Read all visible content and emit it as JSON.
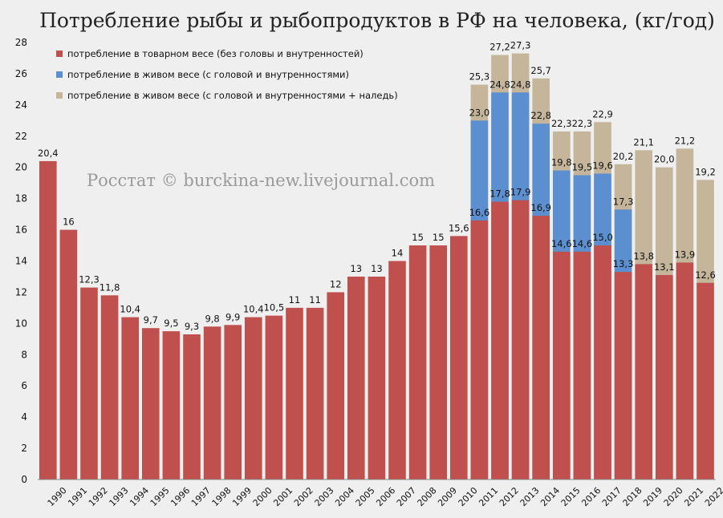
{
  "chart_data": {
    "type": "bar",
    "title": "Потребление рыбы и рыбопродуктов в РФ на человека, (кг/год)",
    "watermark": "Росстат © burckina-new.livejournal.com",
    "xlabel": "",
    "ylabel": "",
    "ylim": [
      0,
      28
    ],
    "yticks": [
      0,
      2,
      4,
      6,
      8,
      10,
      12,
      14,
      16,
      18,
      20,
      22,
      24,
      26,
      28
    ],
    "grid": false,
    "legend_position": "top-left",
    "categories": [
      "1990",
      "1991",
      "1992",
      "1993",
      "1994",
      "1995",
      "1996",
      "1997",
      "1998",
      "1999",
      "2000",
      "2001",
      "2002",
      "2003",
      "2004",
      "2005",
      "2006",
      "2007",
      "2008",
      "2009",
      "2010",
      "2011",
      "2012",
      "2013",
      "2014",
      "2015",
      "2016",
      "2017",
      "2018",
      "2019",
      "2020",
      "2021",
      "2022"
    ],
    "series": [
      {
        "name": "потребление в товарном весе (без головы и внутренностей)",
        "color": "#c0504d",
        "values": [
          20.4,
          16,
          12.3,
          11.8,
          10.4,
          9.7,
          9.5,
          9.3,
          9.8,
          9.9,
          10.4,
          10.5,
          11,
          11,
          12,
          13,
          13,
          14,
          15,
          15,
          15.6,
          16.6,
          17.8,
          17.9,
          16.9,
          14.6,
          14.6,
          15.0,
          13.3,
          13.8,
          13.1,
          13.9,
          12.6
        ],
        "labels": [
          "20,4",
          "16",
          "12,3",
          "11,8",
          "10,4",
          "9,7",
          "9,5",
          "9,3",
          "9,8",
          "9,9",
          "10,4",
          "10,5",
          "11",
          "11",
          "12",
          "13",
          "13",
          "14",
          "15",
          "15",
          "15,6",
          "16,6",
          "17,8",
          "17,9",
          "16,9",
          "14,6",
          "14,6",
          "15,0",
          "13,3",
          "13,8",
          "13,1",
          "13,9",
          "12,6"
        ]
      },
      {
        "name": "потребление в живом весе (с головой и внутренностями)",
        "color": "#5b8fcf",
        "values": [
          null,
          null,
          null,
          null,
          null,
          null,
          null,
          null,
          null,
          null,
          null,
          null,
          null,
          null,
          null,
          null,
          null,
          null,
          null,
          null,
          null,
          23.0,
          24.8,
          24.8,
          22.8,
          19.8,
          19.5,
          19.6,
          17.3,
          null,
          null,
          null,
          null
        ],
        "labels": [
          null,
          null,
          null,
          null,
          null,
          null,
          null,
          null,
          null,
          null,
          null,
          null,
          null,
          null,
          null,
          null,
          null,
          null,
          null,
          null,
          null,
          "23,0",
          "24,8",
          "24,8",
          "22,8",
          "19,8",
          "19,5",
          "19,6",
          "17,3",
          null,
          null,
          null,
          null
        ]
      },
      {
        "name": "потребление в живом весе (с головой и внутренностями + наледь)",
        "color": "#c4b59b",
        "values": [
          null,
          null,
          null,
          null,
          null,
          null,
          null,
          null,
          null,
          null,
          null,
          null,
          null,
          null,
          null,
          null,
          null,
          null,
          null,
          null,
          null,
          25.3,
          27.2,
          27.3,
          25.7,
          22.3,
          22.3,
          22.9,
          20.2,
          21.1,
          20.0,
          21.2,
          19.2
        ],
        "labels": [
          null,
          null,
          null,
          null,
          null,
          null,
          null,
          null,
          null,
          null,
          null,
          null,
          null,
          null,
          null,
          null,
          null,
          null,
          null,
          null,
          null,
          "25,3",
          "27,2",
          "27,3",
          "25,7",
          "22,3",
          "22,3",
          "22,9",
          "20,2",
          "21,1",
          "20,0",
          "21,2",
          "19,2"
        ]
      }
    ]
  }
}
